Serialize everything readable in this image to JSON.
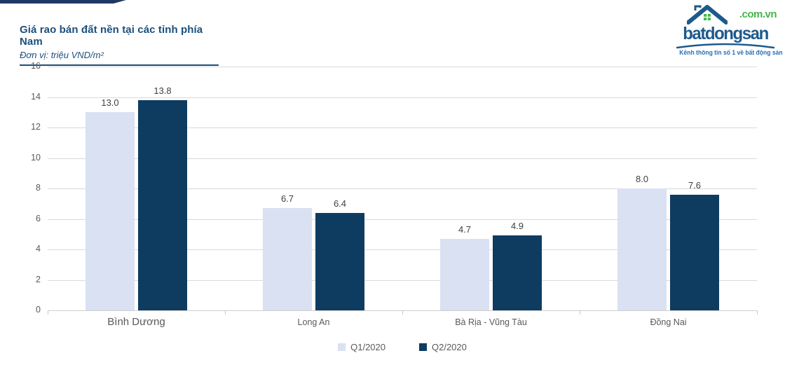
{
  "accent_color": "#1f3864",
  "header": {
    "title": "Giá rao bán đất nền tại các tỉnh phía Nam",
    "subtitle": "Đơn vị: triệu VND/m²"
  },
  "logo": {
    "brand": "batdongsan",
    "domain": ".com.vn",
    "tagline": "Kênh thông tin số 1 về bất động sản",
    "brand_color": "#1d5a8c",
    "green_color": "#45b649",
    "tagline_color": "#2a6db4"
  },
  "chart_data": {
    "type": "bar",
    "title": "Giá rao bán đất nền tại các tỉnh phía Nam",
    "unit_label": "Đơn vị: triệu VND/m²",
    "categories": [
      "Bình Dương",
      "Long An",
      "Bà Rịa - Vũng Tàu",
      "Đồng Nai"
    ],
    "series": [
      {
        "name": "Q1/2020",
        "color": "#d9e1f2",
        "values": [
          13.0,
          6.7,
          4.7,
          8.0
        ]
      },
      {
        "name": "Q2/2020",
        "color": "#0e3c61",
        "values": [
          13.8,
          6.4,
          4.9,
          7.6
        ]
      }
    ],
    "ylabel": "triệu VND/m²",
    "ylim": [
      0,
      16
    ],
    "ytick_step": 2,
    "grid": true,
    "gridline_color": "#d9d9d9",
    "label_decimals": 1,
    "legend_position": "bottom"
  }
}
